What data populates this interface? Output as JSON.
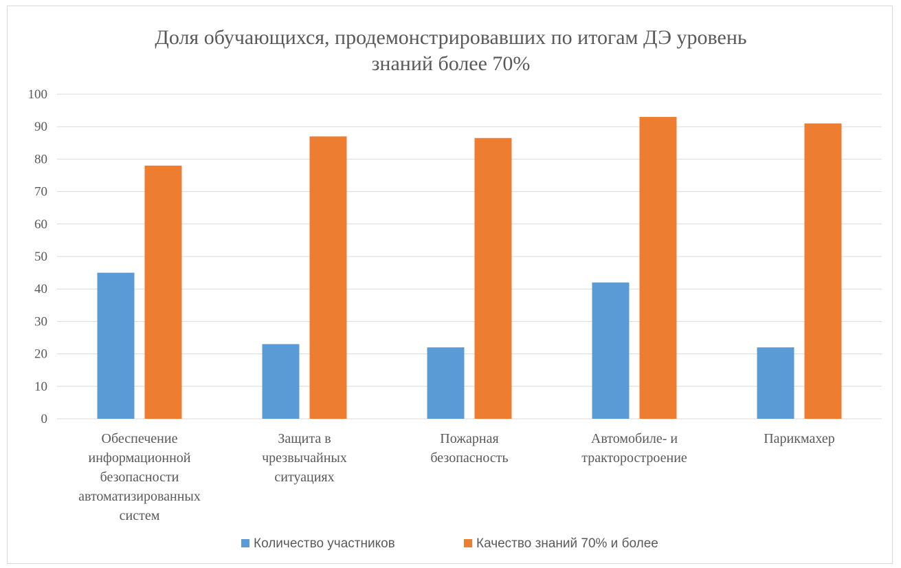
{
  "chart_data": {
    "type": "bar",
    "title_lines": [
      "Доля обучающихся, продемонстрировавших по итогам ДЭ уровень",
      "знаний более 70%"
    ],
    "categories": [
      [
        "Обеспечение",
        "информационной",
        "безопасности",
        "автоматизированных",
        "систем"
      ],
      [
        "Защита в",
        "чрезвычайных",
        "ситуациях"
      ],
      [
        "Пожарная",
        "безопасность"
      ],
      [
        "Автомобиле- и",
        "тракторостроение"
      ],
      [
        "Парикмахер"
      ]
    ],
    "series": [
      {
        "name": "Количество участников",
        "color": "#5b9bd5",
        "values": [
          45,
          23,
          22,
          42,
          22
        ]
      },
      {
        "name": "Качество знаний 70% и более",
        "color": "#ed7d31",
        "values": [
          78,
          87,
          86.5,
          93,
          91
        ]
      }
    ],
    "ylim": [
      0,
      100
    ],
    "yticks": [
      "0",
      "10",
      "20",
      "30",
      "40",
      "50",
      "60",
      "70",
      "80",
      "90",
      "100"
    ],
    "grid": true,
    "legend": "bottom"
  }
}
